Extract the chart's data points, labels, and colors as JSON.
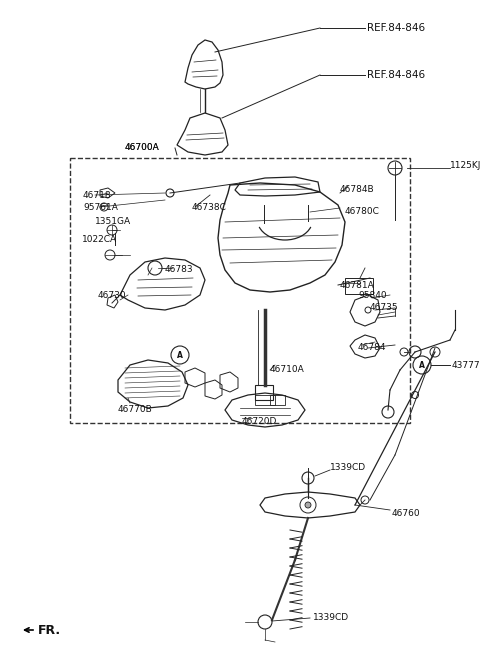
{
  "bg_color": "#ffffff",
  "fig_width": 4.8,
  "fig_height": 6.55,
  "dpi": 100,
  "xlim": [
    0,
    480
  ],
  "ylim": [
    0,
    655
  ]
}
